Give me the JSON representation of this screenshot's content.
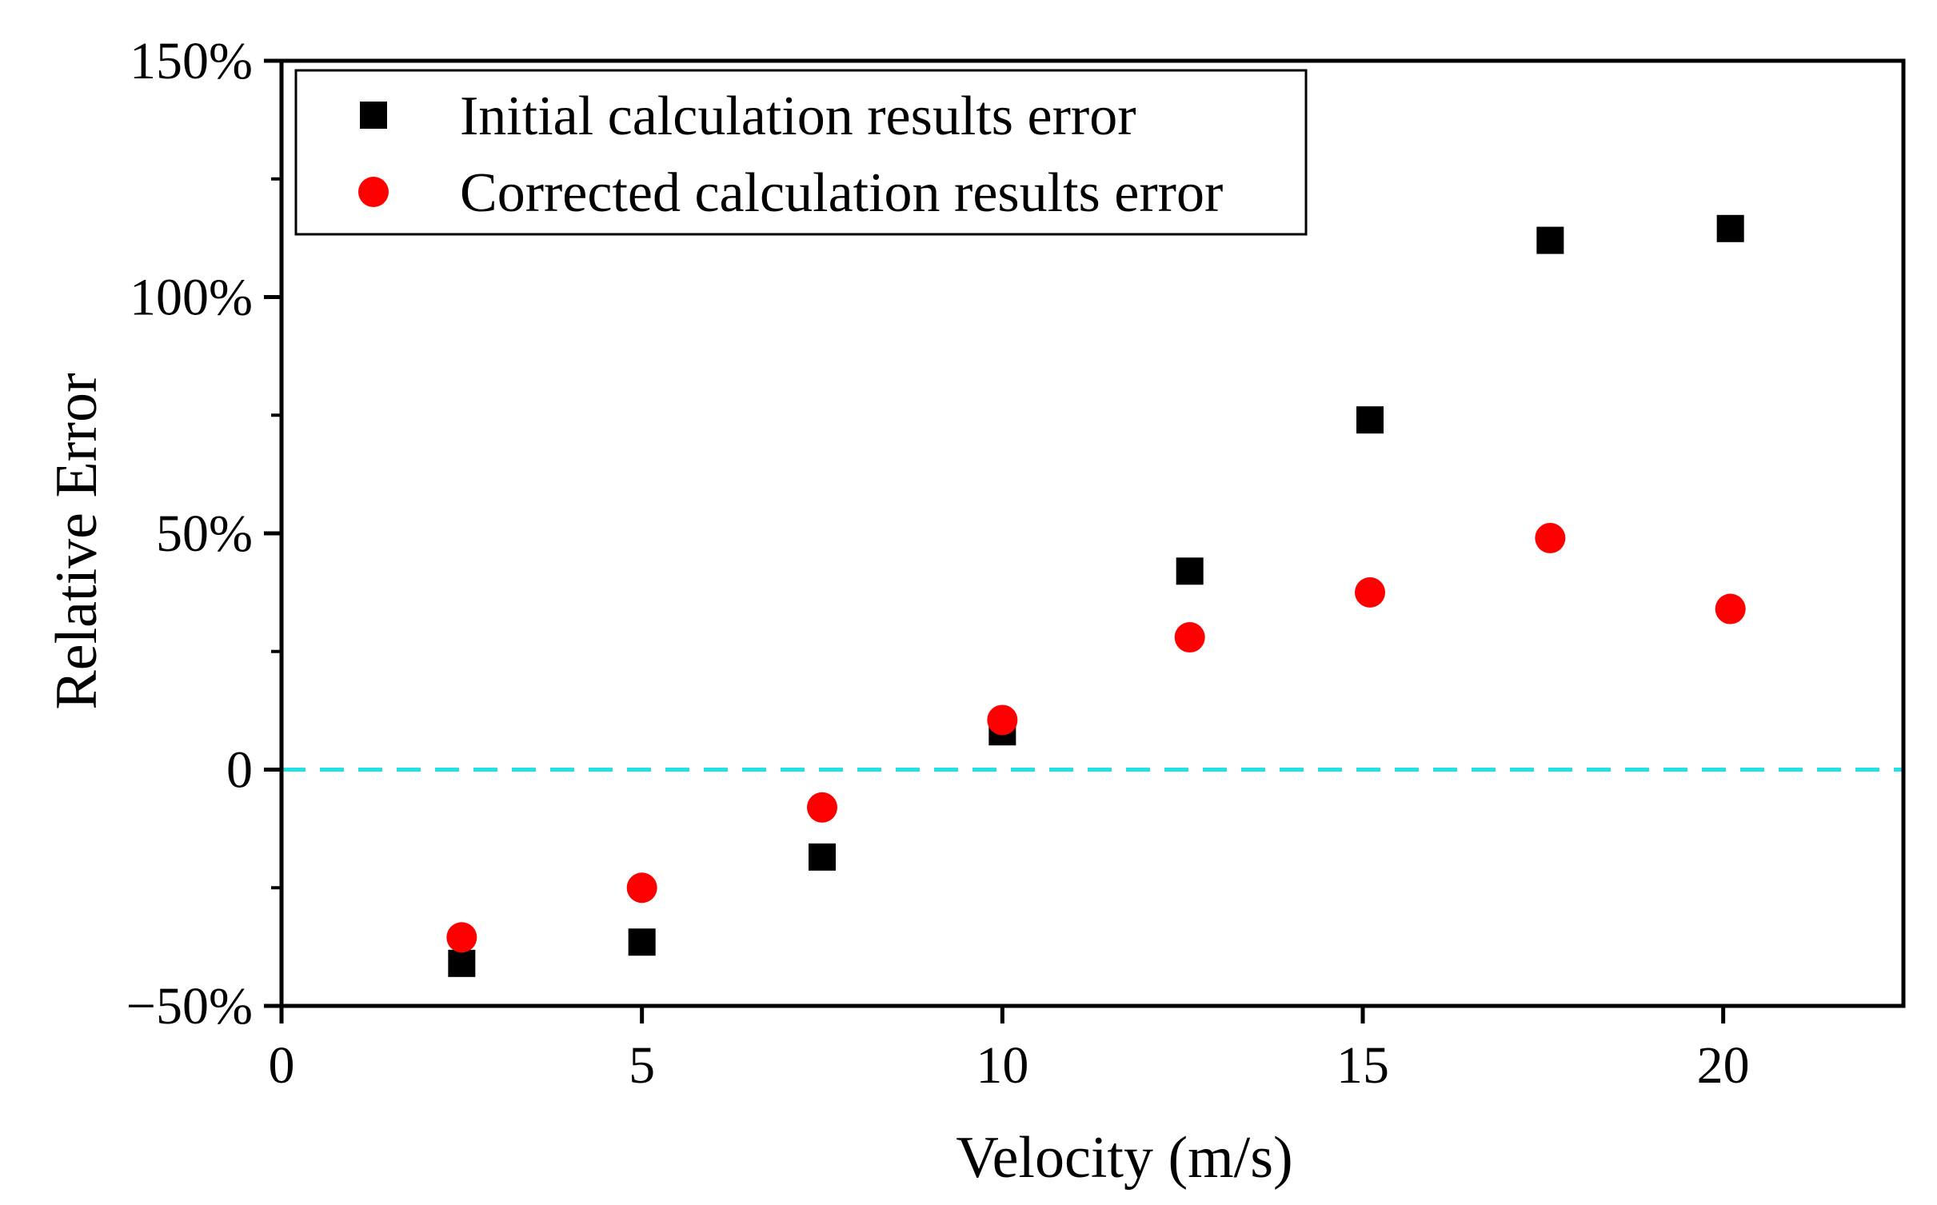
{
  "chart_data": {
    "type": "scatter",
    "title": "",
    "xlabel": "Velocity (m/s)",
    "ylabel": "Relative Error",
    "xlim": [
      0,
      22.5
    ],
    "ylim": [
      -50,
      150
    ],
    "x_ticks": [
      {
        "value": 0,
        "label": "0"
      },
      {
        "value": 5,
        "label": "5"
      },
      {
        "value": 10,
        "label": "10"
      },
      {
        "value": 15,
        "label": "15"
      },
      {
        "value": 20,
        "label": "20"
      }
    ],
    "y_ticks": [
      {
        "value": -50,
        "label": "−50%"
      },
      {
        "value": 0,
        "label": "0"
      },
      {
        "value": 50,
        "label": "50%"
      },
      {
        "value": 100,
        "label": "100%"
      },
      {
        "value": 150,
        "label": "150%"
      }
    ],
    "y_minor_ticks": [
      -25,
      25,
      75,
      125
    ],
    "grid": false,
    "legend_position": "top-left",
    "reference_line": {
      "y": 0,
      "style": "dashed",
      "color": "#22e0e6"
    },
    "series": [
      {
        "name": "Initial calculation results error",
        "marker": "square",
        "color": "#000000",
        "x": [
          2.5,
          5.0,
          7.5,
          10.0,
          12.6,
          15.1,
          17.6,
          20.1
        ],
        "y": [
          -41,
          -36.5,
          -18.5,
          8,
          42,
          74,
          112,
          114.5
        ]
      },
      {
        "name": "Corrected calculation results error",
        "marker": "circle",
        "color": "#ff0000",
        "x": [
          2.5,
          5.0,
          7.5,
          10.0,
          12.6,
          15.1,
          17.6,
          20.1
        ],
        "y": [
          -35.5,
          -25,
          -8,
          10.5,
          28,
          37.5,
          49,
          34
        ]
      }
    ]
  }
}
